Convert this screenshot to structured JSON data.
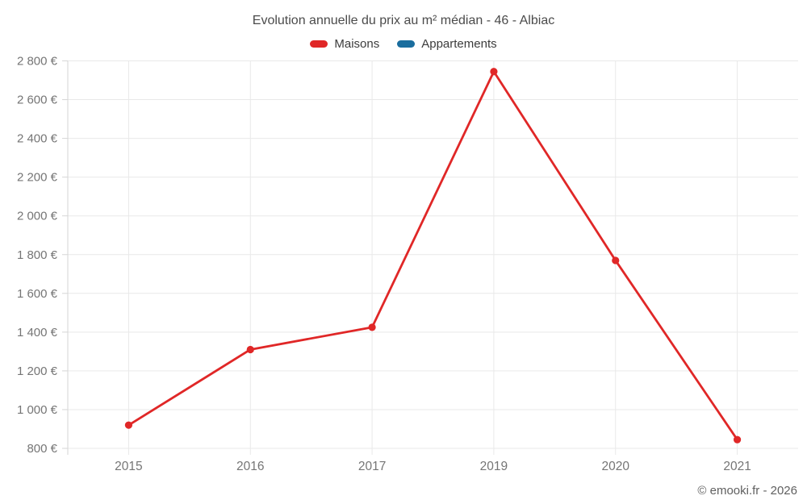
{
  "header": {
    "title": "Evolution annuelle du prix au m² médian - 46 - Albiac"
  },
  "legend": {
    "items": [
      {
        "label": "Maisons",
        "color": "#e02727"
      },
      {
        "label": "Appartements",
        "color": "#1a6d9e"
      }
    ]
  },
  "footer": {
    "text": "© emooki.fr - 2026"
  },
  "chart_data": {
    "type": "line",
    "title": "Evolution annuelle du prix au m² médian - 46 - Albiac",
    "categories": [
      "2015",
      "2016",
      "2017",
      "2019",
      "2020",
      "2021"
    ],
    "series": [
      {
        "name": "Maisons",
        "color": "#e02727",
        "values": [
          920,
          1310,
          1425,
          2745,
          1770,
          845
        ]
      },
      {
        "name": "Appartements",
        "color": "#1a6d9e",
        "values": [
          null,
          null,
          null,
          null,
          null,
          null
        ]
      }
    ],
    "ylim": [
      800,
      2800
    ],
    "ytick_step": 200,
    "ytick_suffix": "€",
    "xlabel": "",
    "ylabel": "",
    "grid": true,
    "legend_position": "top",
    "marker": "circle"
  },
  "colors": {
    "background": "#ffffff",
    "grid": "#e9e9e9",
    "axis": "#d6d6d6",
    "tick_text": "#757575",
    "title_text": "#4b4b4b",
    "legend_text": "#3c3c3c",
    "footer_text": "#606060"
  }
}
